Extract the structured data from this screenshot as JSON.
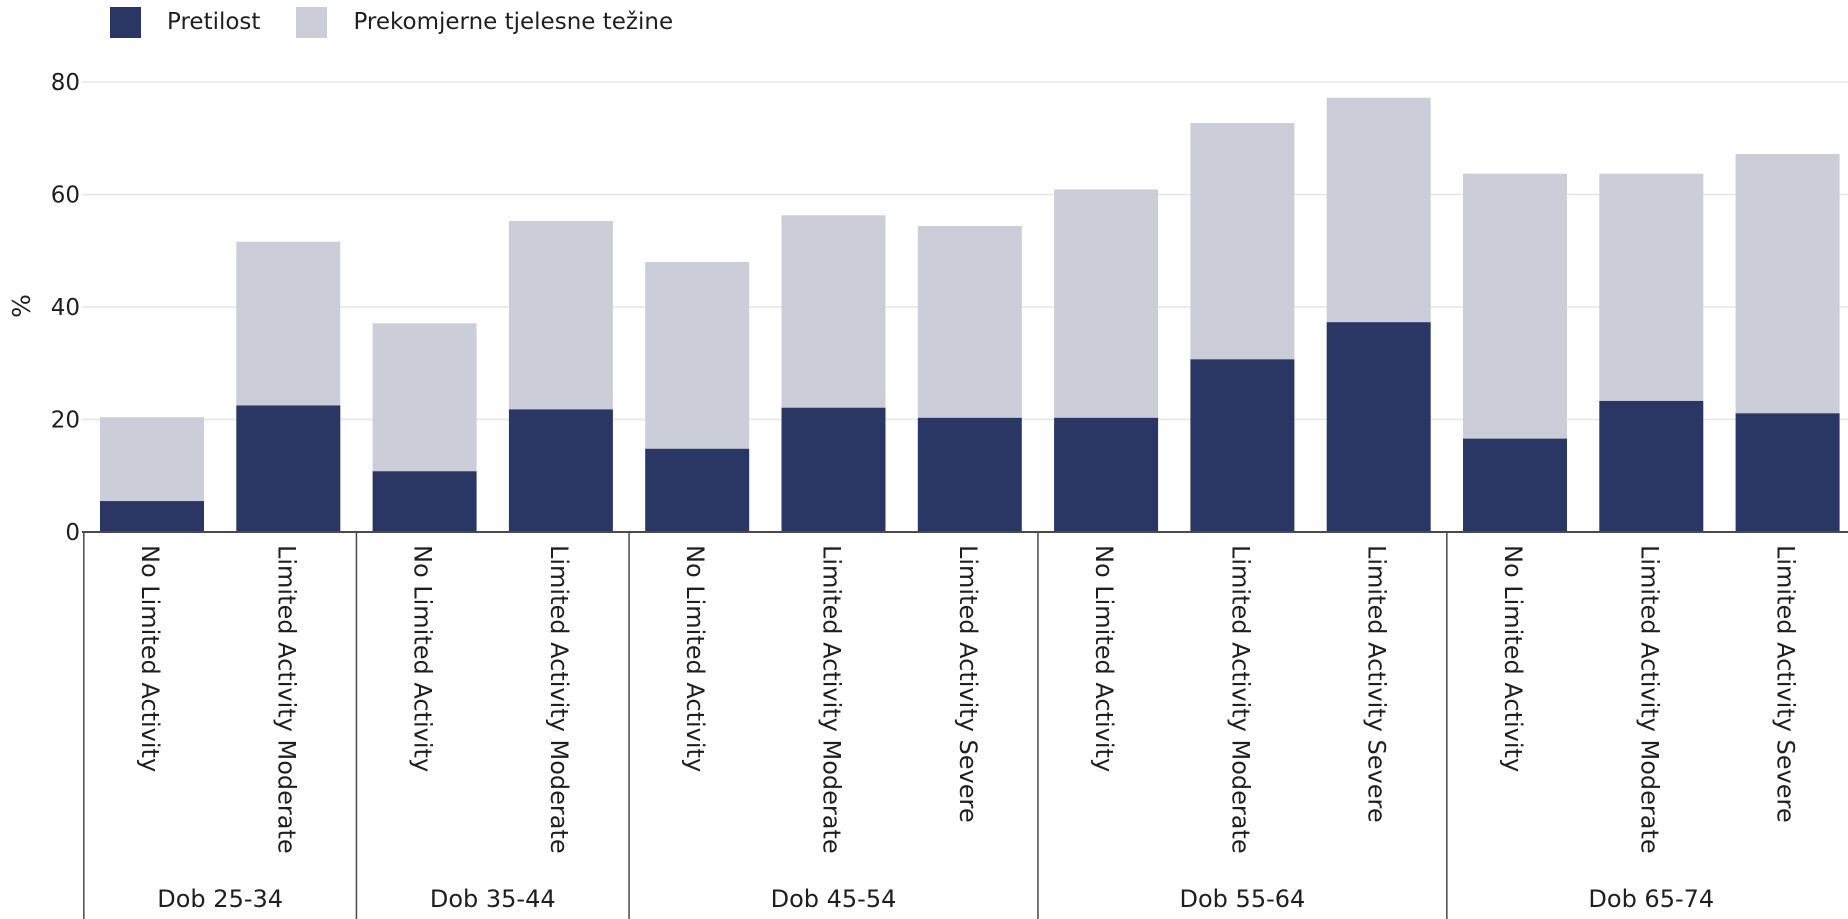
{
  "colors": {
    "obese": "#2a3764",
    "overweight": "#cbcdd9",
    "grid": "#e6e6e6",
    "axis": "#4a4a4a",
    "text": "#1f1f1f"
  },
  "legend": {
    "obese_label": "Pretilost",
    "overweight_label": "Prekomjerne tjelesne težine"
  },
  "chart_data": {
    "type": "bar",
    "stacked": true,
    "ylabel": "%",
    "ylim": [
      0,
      80
    ],
    "yticks": [
      0,
      20,
      40,
      60,
      80
    ],
    "grid": true,
    "legend_position": "top-left",
    "groups": [
      {
        "label": "Dob 25-34",
        "categories": [
          "No Limited Activity",
          "Limited Activity Moderate"
        ]
      },
      {
        "label": "Dob 35-44",
        "categories": [
          "No Limited Activity",
          "Limited Activity Moderate"
        ]
      },
      {
        "label": "Dob 45-54",
        "categories": [
          "No Limited Activity",
          "Limited Activity Moderate",
          "Limited Activity Severe"
        ]
      },
      {
        "label": "Dob 55-64",
        "categories": [
          "No Limited Activity",
          "Limited Activity Moderate",
          "Limited Activity Severe"
        ]
      },
      {
        "label": "Dob 65-74",
        "categories": [
          "No Limited Activity",
          "Limited Activity Moderate",
          "Limited Activity Severe"
        ]
      }
    ],
    "series": [
      {
        "name": "Pretilost",
        "values": [
          5.5,
          22.5,
          10.8,
          21.8,
          14.8,
          22.1,
          20.3,
          20.3,
          30.7,
          37.3,
          16.6,
          23.3,
          21.1
        ]
      },
      {
        "name": "Prekomjerne tjelesne težine",
        "values": [
          14.9,
          29.1,
          26.3,
          33.5,
          33.2,
          34.2,
          34.1,
          40.6,
          42.0,
          39.9,
          47.1,
          40.4,
          46.1
        ]
      }
    ]
  }
}
